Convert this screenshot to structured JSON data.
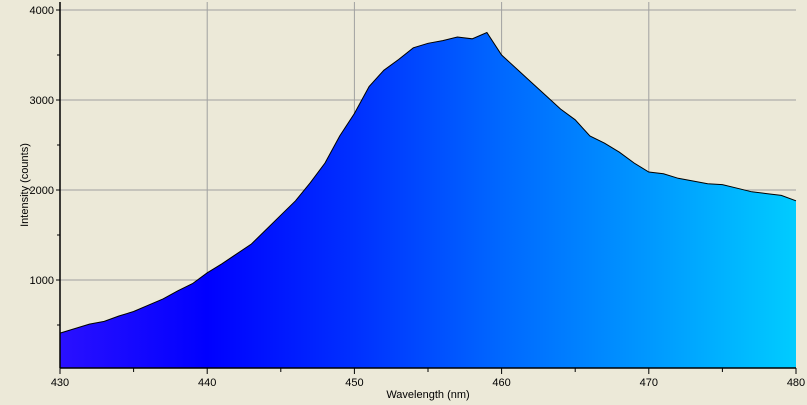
{
  "chart_data": {
    "type": "area",
    "title": "",
    "xlabel": "Wavelength (nm)",
    "ylabel": "Intensity (counts)",
    "xlim": [
      430,
      480
    ],
    "ylim": [
      0,
      4000
    ],
    "x_ticks": [
      430,
      440,
      450,
      460,
      470,
      480
    ],
    "y_ticks": [
      1000,
      2000,
      3000,
      4000
    ],
    "grid": true,
    "legend": null,
    "fill": "spectral gradient (violet-blue at 430 nm to cyan at 480 nm)",
    "series": [
      {
        "name": "Intensity",
        "x": [
          430,
          431,
          432,
          433,
          434,
          435,
          436,
          437,
          438,
          439,
          440,
          441,
          442,
          443,
          444,
          445,
          446,
          447,
          448,
          449,
          450,
          451,
          452,
          453,
          454,
          455,
          456,
          457,
          458,
          459,
          460,
          461,
          462,
          463,
          464,
          465,
          466,
          467,
          468,
          469,
          470,
          471,
          472,
          473,
          474,
          475,
          476,
          477,
          478,
          479,
          480
        ],
        "values": [
          410,
          460,
          510,
          540,
          600,
          650,
          720,
          790,
          880,
          960,
          1080,
          1180,
          1290,
          1400,
          1560,
          1720,
          1880,
          2080,
          2300,
          2600,
          2850,
          3150,
          3330,
          3450,
          3580,
          3630,
          3660,
          3700,
          3680,
          3750,
          3500,
          3350,
          3200,
          3050,
          2900,
          2780,
          2600,
          2520,
          2420,
          2300,
          2200,
          2180,
          2130,
          2100,
          2070,
          2060,
          2020,
          1980,
          1960,
          1940,
          1880
        ]
      }
    ]
  },
  "axes": {
    "x_title": "Wavelength (nm)",
    "y_title": "Intensity (counts)",
    "x_tick_labels": [
      "430",
      "440",
      "450",
      "460",
      "470",
      "480"
    ],
    "y_tick_labels": [
      "1000",
      "2000",
      "3000",
      "4000"
    ]
  },
  "colors": {
    "background": "#ece9d8",
    "grid": "#a0a0a0",
    "line": "#000000",
    "gradient_stops": [
      "#2a10ff",
      "#0000ff",
      "#0048ff",
      "#0070ff",
      "#00a0ff",
      "#00c8ff"
    ]
  }
}
